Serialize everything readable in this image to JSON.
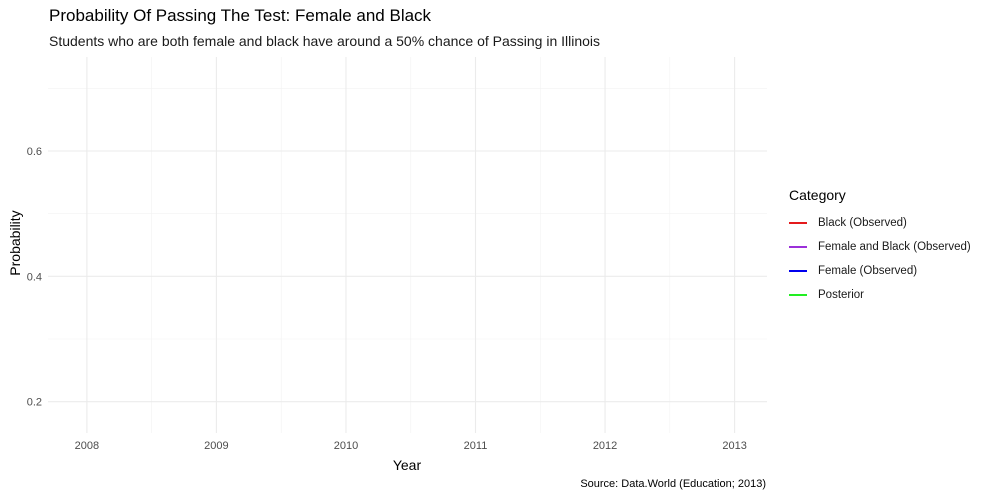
{
  "chart_data": {
    "type": "line",
    "title": "Probability Of Passing The Test: Female and Black",
    "subtitle": "Students who are both female and black have around a 50% chance of Passing in Illinois",
    "xlabel": "Year",
    "ylabel": "Probability",
    "caption": "Source: Data.World (Education; 2013)",
    "x_ticks": [
      "2008",
      "2009",
      "2010",
      "2011",
      "2012",
      "2013"
    ],
    "y_ticks": [
      "0.2",
      "0.4",
      "0.6"
    ],
    "xlim": [
      2007.7,
      2013.25
    ],
    "ylim": [
      0.15,
      0.75
    ],
    "grid": true,
    "legend": {
      "title": "Category",
      "placement": "right",
      "entries": [
        {
          "label": "Black (Observed)",
          "color": "#e41a1c"
        },
        {
          "label": "Female and Black (Observed)",
          "color": "#9b30d9"
        },
        {
          "label": "Female (Observed)",
          "color": "#0000ee"
        },
        {
          "label": "Posterior",
          "color": "#22ee22"
        }
      ]
    },
    "series": []
  }
}
